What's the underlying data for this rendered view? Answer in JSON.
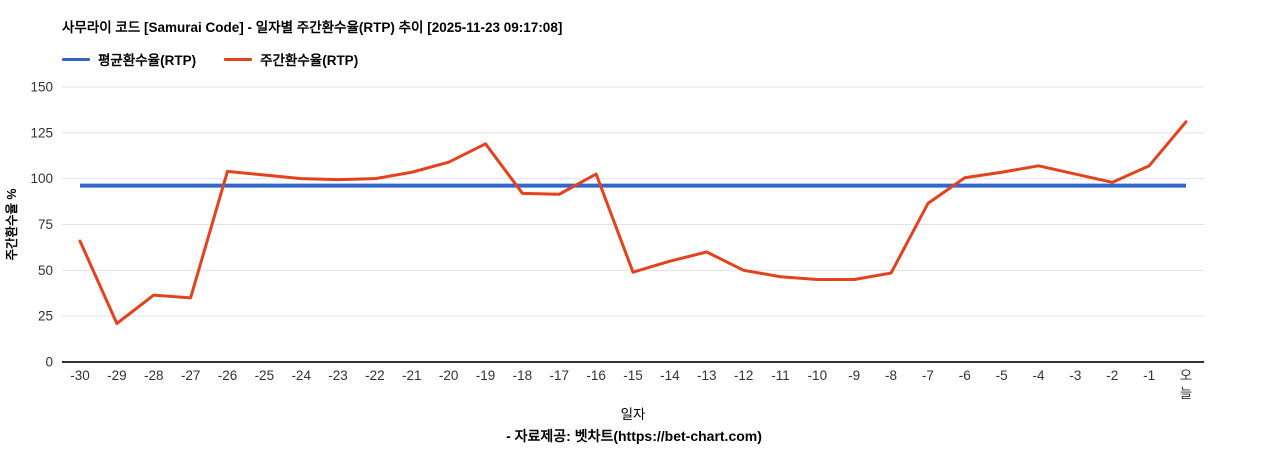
{
  "title": "사무라이 코드 [Samurai Code] - 일자별 주간환수율(RTP) 추이 [2025-11-23 09:17:08]",
  "legend": [
    {
      "label": "평균환수율(RTP)",
      "color": "#3366cc"
    },
    {
      "label": "주간환수율(RTP)",
      "color": "#e2431e"
    }
  ],
  "footer": "- 자료제공: 벳차트(https://bet-chart.com)",
  "colors": {
    "average_line": "#3366cc",
    "weekly_line": "#e2431e",
    "grid": "#e3e3e3",
    "axis": "#333333",
    "tick_text": "#333333"
  },
  "chart_data": {
    "type": "line",
    "title": "사무라이 코드 [Samurai Code] - 일자별 주간환수율(RTP) 추이 [2025-11-23 09:17:08]",
    "xlabel": "일자",
    "ylabel": "주간환수율 %",
    "ylim": [
      0,
      150
    ],
    "yticks": [
      0,
      25,
      50,
      75,
      100,
      125,
      150
    ],
    "grid": true,
    "legend_position": "top-left",
    "last_x_label_vertical": true,
    "categories": [
      "-30",
      "-29",
      "-28",
      "-27",
      "-26",
      "-25",
      "-24",
      "-23",
      "-22",
      "-21",
      "-20",
      "-19",
      "-18",
      "-17",
      "-16",
      "-15",
      "-14",
      "-13",
      "-12",
      "-11",
      "-10",
      "-9",
      "-8",
      "-7",
      "-6",
      "-5",
      "-4",
      "-3",
      "-2",
      "-1",
      "오늘"
    ],
    "series": [
      {
        "name": "평균환수율(RTP)",
        "color": "#3366cc",
        "type": "constant",
        "value": 96.2
      },
      {
        "name": "주간환수율(RTP)",
        "color": "#e2431e",
        "type": "line",
        "values": [
          66,
          21,
          36.5,
          35,
          104,
          102,
          100,
          99.5,
          100,
          103.5,
          109,
          119,
          92,
          91.5,
          102.5,
          49,
          55,
          60,
          50,
          46.5,
          45,
          45,
          48.5,
          86.5,
          100.5,
          103.5,
          107,
          102.5,
          98,
          107,
          131
        ]
      }
    ]
  }
}
